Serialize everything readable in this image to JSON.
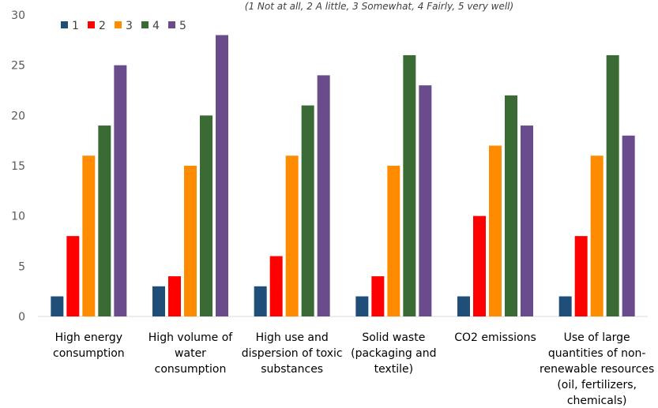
{
  "chart_data": {
    "type": "bar",
    "subtitle": "(1 Not at all, 2 A little, 3 Somewhat, 4 Fairly, 5 very well)",
    "categories": [
      [
        "High energy",
        "consumption"
      ],
      [
        "High volume of",
        "water",
        "consumption"
      ],
      [
        "High use and",
        "dispersion of toxic",
        "substances"
      ],
      [
        "Solid waste",
        "(packaging and",
        "textile)"
      ],
      [
        "CO2 emissions"
      ],
      [
        "Use of large",
        "quantities of non-",
        "renewable resources",
        "(oil, fertilizers,",
        "chemicals)"
      ]
    ],
    "series": [
      {
        "name": "1",
        "color": "#1f4e79",
        "values": [
          2,
          3,
          3,
          2,
          2,
          2
        ]
      },
      {
        "name": "2",
        "color": "#ff0000",
        "values": [
          8,
          4,
          6,
          4,
          10,
          8
        ]
      },
      {
        "name": "3",
        "color": "#ff8c00",
        "values": [
          16,
          15,
          16,
          15,
          17,
          16
        ]
      },
      {
        "name": "4",
        "color": "#3a6b35",
        "values": [
          19,
          20,
          21,
          26,
          22,
          26
        ]
      },
      {
        "name": "5",
        "color": "#6a4c8c",
        "values": [
          25,
          28,
          24,
          23,
          19,
          18
        ]
      }
    ],
    "ylim": [
      0,
      30
    ],
    "yticks": [
      0,
      5,
      10,
      15,
      20,
      25,
      30
    ],
    "grid": false,
    "legend_position": "top-left"
  }
}
